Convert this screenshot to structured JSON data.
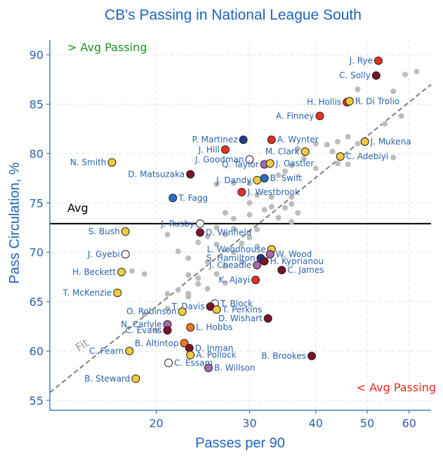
{
  "chart_data": {
    "type": "scatter",
    "title": "CB's Passing in National League South",
    "xlabel": "Passes per 90",
    "ylabel": "Pass Circulation, %",
    "x_scale": "log",
    "xlim": [
      12.6,
      66
    ],
    "ylim": [
      54,
      91.5
    ],
    "x_ticks": [
      20,
      30,
      40,
      50,
      60
    ],
    "y_ticks": [
      55,
      60,
      65,
      70,
      75,
      80,
      85,
      90
    ],
    "grid": true,
    "avg_y": 72.9,
    "avg_label": "Avg",
    "above_label": "> Avg Passing",
    "below_label": "< Avg Passing",
    "fit_label": "Fit",
    "fit_line": {
      "x": [
        12.6,
        66
      ],
      "y": [
        55.8,
        87.0
      ]
    },
    "colors": {
      "accent": "#1f63b8",
      "above": "#1f8f1f",
      "below": "#e8281e",
      "avg_line": "#000000",
      "fit_line": "#7f7f7f",
      "background_points": "#bdbdbd",
      "yellow": "#f2cc3c",
      "red": "#e63223",
      "maroon": "#7a1426",
      "navy": "#1e3b8c",
      "blue": "#2a6fc9",
      "purple": "#a86ab0",
      "orange": "#f07a24",
      "white": "#ffffff"
    },
    "labeled_points": [
      {
        "name": "J. Rye",
        "x": 52.5,
        "y": 89.4,
        "color": "red",
        "side": "left"
      },
      {
        "name": "C. Solly",
        "x": 52.0,
        "y": 87.9,
        "color": "maroon",
        "side": "left"
      },
      {
        "name": "H. Hollis",
        "x": 45.8,
        "y": 85.2,
        "color": "red",
        "side": "left"
      },
      {
        "name": "R. Di Trolio",
        "x": 46.3,
        "y": 85.3,
        "color": "yellow",
        "side": "right"
      },
      {
        "name": "A. Finney",
        "x": 40.7,
        "y": 83.8,
        "color": "red",
        "side": "left"
      },
      {
        "name": "P. Martinez",
        "x": 29.2,
        "y": 81.4,
        "color": "navy",
        "side": "left"
      },
      {
        "name": "A. Wynter",
        "x": 33.0,
        "y": 81.4,
        "color": "red",
        "side": "right"
      },
      {
        "name": "J. Mukena",
        "x": 49.5,
        "y": 81.2,
        "color": "yellow",
        "side": "right"
      },
      {
        "name": "J. Hill",
        "x": 27.0,
        "y": 80.4,
        "color": "red",
        "side": "left"
      },
      {
        "name": "M. Clark",
        "x": 38.2,
        "y": 80.2,
        "color": "yellow",
        "side": "left"
      },
      {
        "name": "C. Adebiyi",
        "x": 44.5,
        "y": 79.7,
        "color": "yellow",
        "side": "right"
      },
      {
        "name": "N. Smith",
        "x": 16.5,
        "y": 79.1,
        "color": "yellow",
        "side": "left"
      },
      {
        "name": "J. Goodman",
        "x": 30.0,
        "y": 79.4,
        "color": "white",
        "side": "left"
      },
      {
        "name": "Q. Taylor",
        "x": 32.0,
        "y": 78.9,
        "color": "purple",
        "side": "left"
      },
      {
        "name": "J. Oastler",
        "x": 32.8,
        "y": 79.0,
        "color": "yellow",
        "side": "right"
      },
      {
        "name": "D. Matsuzaka",
        "x": 23.2,
        "y": 77.9,
        "color": "maroon",
        "side": "left"
      },
      {
        "name": "J. Dandy",
        "x": 31.0,
        "y": 77.3,
        "color": "yellow",
        "side": "left"
      },
      {
        "name": "B. Swift",
        "x": 32.0,
        "y": 77.5,
        "color": "blue",
        "side": "right"
      },
      {
        "name": "J. Westbrook",
        "x": 29.0,
        "y": 76.1,
        "color": "red",
        "side": "right"
      },
      {
        "name": "T. Fagg",
        "x": 21.5,
        "y": 75.5,
        "color": "blue",
        "side": "right"
      },
      {
        "name": "J. Rusby",
        "x": 24.2,
        "y": 72.9,
        "color": "white",
        "side": "left"
      },
      {
        "name": "S. Bush",
        "x": 17.5,
        "y": 72.1,
        "color": "yellow",
        "side": "left"
      },
      {
        "name": "D. Winfield",
        "x": 24.2,
        "y": 72.0,
        "color": "maroon",
        "side": "right"
      },
      {
        "name": "L. Woodhouse",
        "x": 33.0,
        "y": 70.3,
        "color": "yellow",
        "side": "left"
      },
      {
        "name": "J. Gyebi",
        "x": 17.5,
        "y": 69.8,
        "color": "white",
        "side": "left"
      },
      {
        "name": "W. Wood",
        "x": 32.8,
        "y": 69.8,
        "color": "purple",
        "side": "right"
      },
      {
        "name": "S. Hamilton",
        "x": 31.5,
        "y": 69.4,
        "color": "navy",
        "side": "left"
      },
      {
        "name": "H. Kyprianou",
        "x": 32.0,
        "y": 69.1,
        "color": "maroon",
        "side": "right"
      },
      {
        "name": "J. Cheadle",
        "x": 31.0,
        "y": 68.7,
        "color": "purple",
        "side": "left"
      },
      {
        "name": "C. James",
        "x": 34.5,
        "y": 68.2,
        "color": "maroon",
        "side": "right"
      },
      {
        "name": "H. Beckett",
        "x": 17.2,
        "y": 68.0,
        "color": "yellow",
        "side": "left"
      },
      {
        "name": "K. Ajayi",
        "x": 30.8,
        "y": 67.2,
        "color": "red",
        "side": "left"
      },
      {
        "name": "T. McKenzie",
        "x": 16.9,
        "y": 65.9,
        "color": "yellow",
        "side": "left"
      },
      {
        "name": "T. Block",
        "x": 25.8,
        "y": 64.8,
        "color": "white",
        "side": "right"
      },
      {
        "name": "T. Davis",
        "x": 25.3,
        "y": 64.5,
        "color": "maroon",
        "side": "left"
      },
      {
        "name": "T. Perkins",
        "x": 26.0,
        "y": 64.2,
        "color": "yellow",
        "side": "right"
      },
      {
        "name": "O. Robinson",
        "x": 22.4,
        "y": 64.0,
        "color": "yellow",
        "side": "left"
      },
      {
        "name": "D. Wishart",
        "x": 32.5,
        "y": 63.3,
        "color": "maroon",
        "side": "left"
      },
      {
        "name": "N. Carlyle",
        "x": 21.0,
        "y": 62.7,
        "color": "purple",
        "side": "left"
      },
      {
        "name": "L. Hobbs",
        "x": 23.2,
        "y": 62.4,
        "color": "orange",
        "side": "right"
      },
      {
        "name": "C. Evans",
        "x": 21.0,
        "y": 62.1,
        "color": "maroon",
        "side": "left"
      },
      {
        "name": "B. Altintop",
        "x": 22.6,
        "y": 60.8,
        "color": "orange",
        "side": "left"
      },
      {
        "name": "D. Inman",
        "x": 23.1,
        "y": 60.3,
        "color": "maroon",
        "side": "right"
      },
      {
        "name": "C. Fearn",
        "x": 17.8,
        "y": 60.0,
        "color": "yellow",
        "side": "left"
      },
      {
        "name": "A. Pollock",
        "x": 23.2,
        "y": 59.6,
        "color": "yellow",
        "side": "right"
      },
      {
        "name": "B. Brookes",
        "x": 39.3,
        "y": 59.5,
        "color": "maroon",
        "side": "left"
      },
      {
        "name": "C. Essam",
        "x": 21.1,
        "y": 58.8,
        "color": "white",
        "side": "right"
      },
      {
        "name": "B. Willson",
        "x": 25.1,
        "y": 58.3,
        "color": "purple",
        "side": "right"
      },
      {
        "name": "B. Steward",
        "x": 18.3,
        "y": 57.2,
        "color": "yellow",
        "side": "left"
      }
    ],
    "background_points": [
      [
        59,
        88.0
      ],
      [
        62,
        88.3
      ],
      [
        48,
        86.5
      ],
      [
        56,
        86.3
      ],
      [
        58,
        83.8
      ],
      [
        54,
        83.0
      ],
      [
        44,
        81.2
      ],
      [
        46,
        81.7
      ],
      [
        42,
        80.9
      ],
      [
        40,
        81.0
      ],
      [
        48,
        81.0
      ],
      [
        43,
        80.2
      ],
      [
        37,
        80.5
      ],
      [
        38,
        79.5
      ],
      [
        36,
        78.8
      ],
      [
        35,
        78.2
      ],
      [
        40,
        78.5
      ],
      [
        44,
        79.0
      ],
      [
        46,
        78.9
      ],
      [
        56,
        79.6
      ],
      [
        34,
        77.8
      ],
      [
        30,
        77.0
      ],
      [
        28,
        77.0
      ],
      [
        26,
        76.9
      ],
      [
        31,
        75.8
      ],
      [
        33,
        75.6
      ],
      [
        36,
        75.6
      ],
      [
        30,
        75.0
      ],
      [
        33,
        74.6
      ],
      [
        36,
        74.9
      ],
      [
        27,
        74.0
      ],
      [
        28,
        73.4
      ],
      [
        30,
        73.8
      ],
      [
        32,
        74.3
      ],
      [
        35,
        74.5
      ],
      [
        37,
        74.0
      ],
      [
        34,
        73.5
      ],
      [
        36,
        73.1
      ],
      [
        26,
        72.5
      ],
      [
        28,
        72.4
      ],
      [
        31,
        72.3
      ],
      [
        25,
        71.6
      ],
      [
        27,
        71.8
      ],
      [
        30,
        71.5
      ],
      [
        21,
        71.8
      ],
      [
        24,
        71.0
      ],
      [
        26,
        70.8
      ],
      [
        29,
        70.9
      ],
      [
        22,
        70.1
      ],
      [
        28,
        70.0
      ],
      [
        31,
        70.6
      ],
      [
        23,
        69.4
      ],
      [
        25,
        69.0
      ],
      [
        27,
        68.6
      ],
      [
        29,
        69.0
      ],
      [
        26,
        67.8
      ],
      [
        24,
        67.4
      ],
      [
        27,
        66.9
      ],
      [
        25,
        66.3
      ],
      [
        18,
        68.1
      ],
      [
        19,
        67.8
      ],
      [
        23,
        67.7
      ],
      [
        22,
        66.2
      ],
      [
        24,
        66.8
      ],
      [
        23,
        65.8
      ],
      [
        21,
        65.8
      ],
      [
        21,
        64.3
      ],
      [
        19,
        63.7
      ],
      [
        20,
        62.1
      ],
      [
        23,
        65.5
      ]
    ]
  }
}
